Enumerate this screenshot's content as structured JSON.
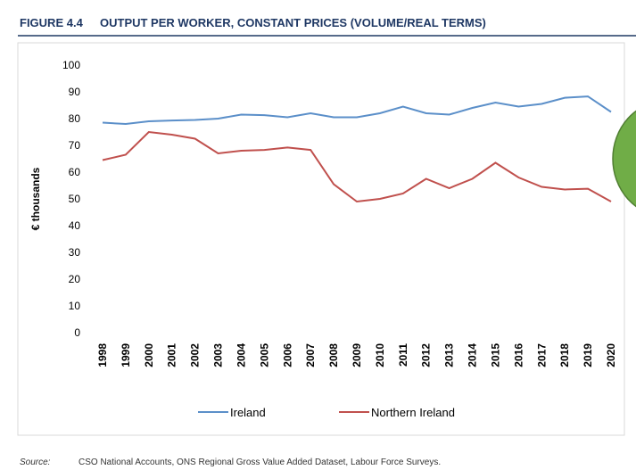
{
  "header": {
    "figure": "FIGURE 4.4",
    "title": "OUTPUT PER WORKER, CONSTANT PRICES (VOLUME/REAL TERMS)"
  },
  "chart_data": {
    "type": "line",
    "y_label": "€ thousands",
    "categories": [
      "1998",
      "1999",
      "2000",
      "2001",
      "2002",
      "2003",
      "2004",
      "2005",
      "2006",
      "2007",
      "2008",
      "2009",
      "2010",
      "2011",
      "2012",
      "2013",
      "2014",
      "2015",
      "2016",
      "2017",
      "2018",
      "2019",
      "2020"
    ],
    "series": [
      {
        "name": "Ireland",
        "color": "#5b8fc9",
        "values": [
          78.5,
          78,
          79,
          79.3,
          79.5,
          80,
          81.5,
          81.3,
          80.5,
          82,
          80.5,
          80.5,
          82,
          84.5,
          82,
          81.5,
          84,
          86,
          84.5,
          85.5,
          87.8,
          88.3,
          82.5
        ]
      },
      {
        "name": "Northern Ireland",
        "color": "#c0504d",
        "values": [
          64.5,
          66.5,
          75,
          74,
          72.5,
          67,
          68,
          68.3,
          69.2,
          68.3,
          55.5,
          49,
          50,
          52,
          57.5,
          54,
          57.5,
          63.5,
          58,
          54.5,
          53.5,
          53.8,
          49
        ]
      }
    ],
    "ylim": [
      0,
      100
    ],
    "yticks": [
      0,
      10,
      20,
      30,
      40,
      50,
      60,
      70,
      80,
      90,
      100
    ],
    "grid": false,
    "legend": "bottom"
  },
  "source": {
    "label": "Source:",
    "text": "CSO National Accounts, ONS Regional Gross Value Added Dataset, Labour Force Surveys."
  }
}
